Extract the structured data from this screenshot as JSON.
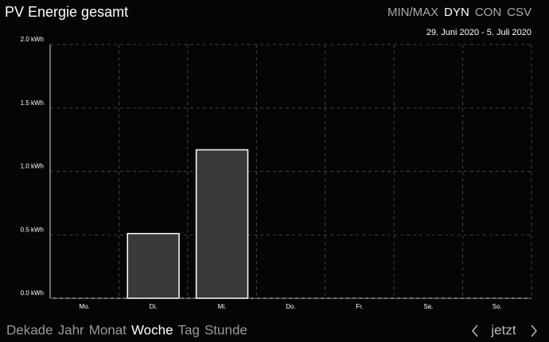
{
  "header": {
    "title": "PV Energie gesamt",
    "modes": [
      "MIN/MAX",
      "DYN",
      "CON",
      "CSV"
    ],
    "selected_mode": 1,
    "date_range": "29. Juni 2020 - 5. Juli 2020"
  },
  "chart_data": {
    "type": "bar",
    "categories": [
      "Mo.",
      "Di.",
      "Mi.",
      "Do.",
      "Fr.",
      "Sa.",
      "So."
    ],
    "values": [
      0,
      0.51,
      1.17,
      0,
      0,
      0,
      0
    ],
    "color": "#3a3a3a",
    "ylim": [
      0,
      2.0
    ],
    "yticks": [
      {
        "value": 0,
        "label": "0.0 kWh"
      },
      {
        "value": 0.5,
        "label": "0.5 kWh"
      },
      {
        "value": 1.0,
        "label": "1.0 kWh"
      },
      {
        "value": 1.5,
        "label": "1.5 kWh"
      },
      {
        "value": 2.0,
        "label": "2.0 kWh"
      }
    ],
    "grid": true
  },
  "footer": {
    "periods": [
      "Dekade",
      "Jahr",
      "Monat",
      "Woche",
      "Tag",
      "Stunde"
    ],
    "selected_period": 3,
    "now": "jetzt"
  }
}
